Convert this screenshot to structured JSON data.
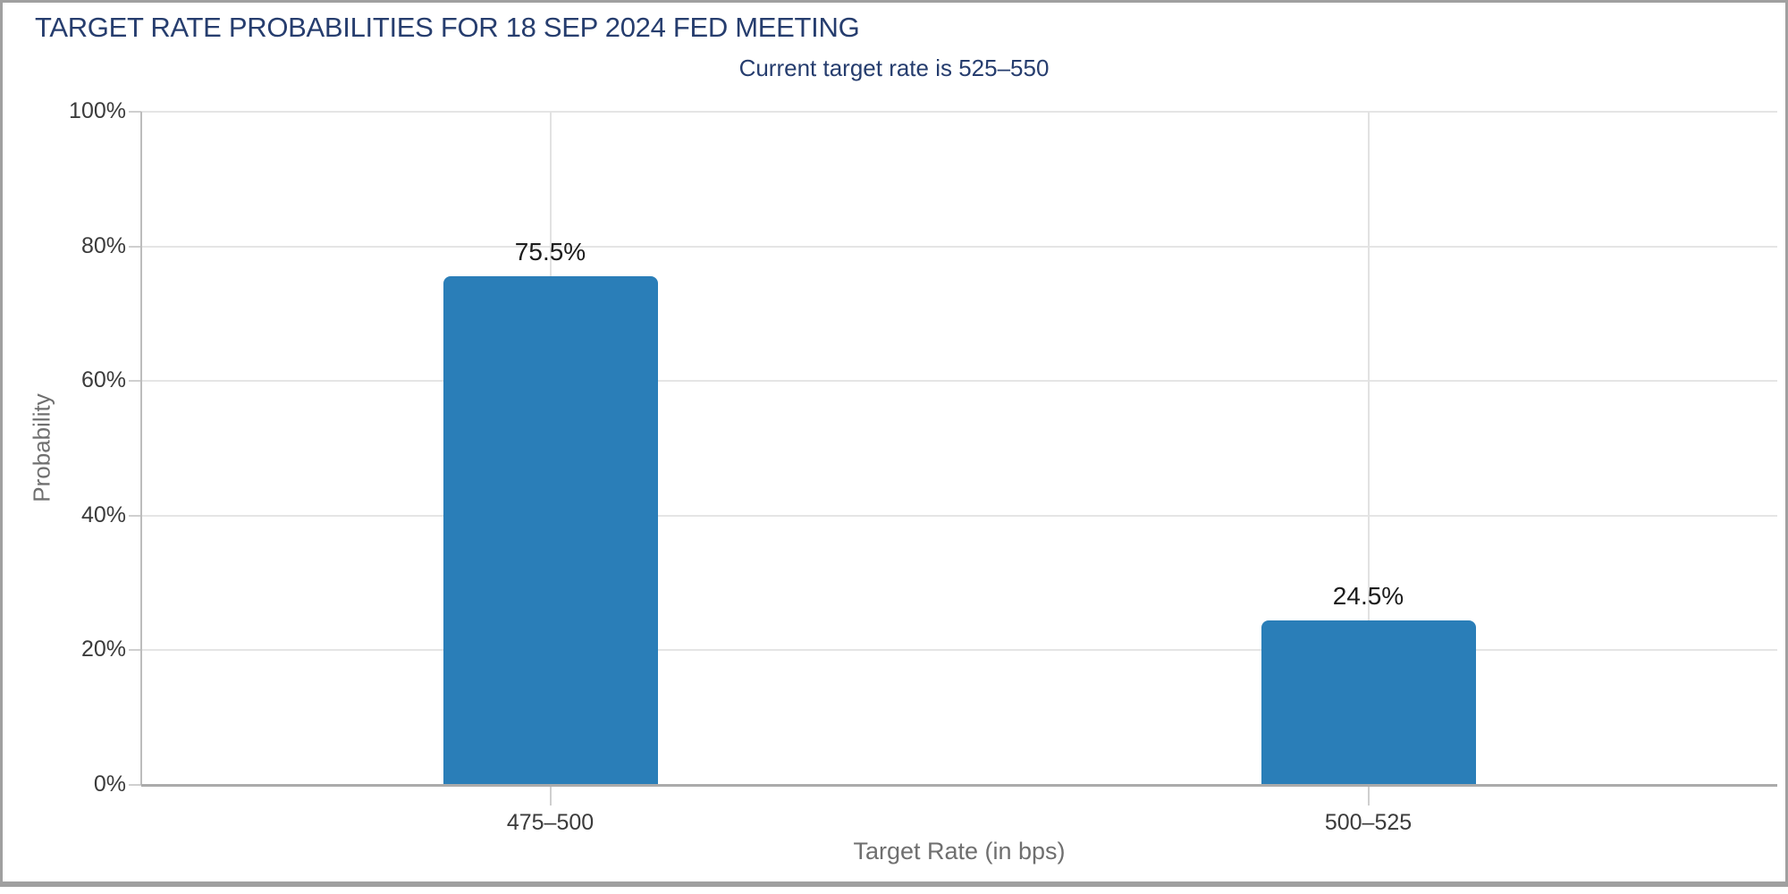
{
  "header": {
    "title": "TARGET RATE PROBABILITIES FOR 18 SEP 2024 FED MEETING",
    "subtitle": "Current target rate is 525–550"
  },
  "colors": {
    "bar": "#2a7eb8",
    "title_navy": "#263d6e",
    "tick_label": "#3b3b3b",
    "axis_title": "#6f6f6f",
    "gridline": "#e5e5e5",
    "baseline": "#ababab"
  },
  "chart_data": {
    "type": "bar",
    "title": "TARGET RATE PROBABILITIES FOR 18 SEP 2024 FED MEETING",
    "subtitle": "Current target rate is 525–550",
    "categories": [
      "475–500",
      "500–525"
    ],
    "values": [
      75.5,
      24.5
    ],
    "value_labels": [
      "75.5%",
      "24.5%"
    ],
    "xlabel": "Target Rate (in bps)",
    "ylabel": "Probability",
    "ylim": [
      0,
      100
    ],
    "yticks": [
      0,
      20,
      40,
      60,
      80,
      100
    ],
    "ytick_labels": [
      "0%",
      "20%",
      "40%",
      "60%",
      "80%",
      "100%"
    ],
    "grid": true,
    "legend": "none",
    "bar_color": "#2a7eb8"
  }
}
